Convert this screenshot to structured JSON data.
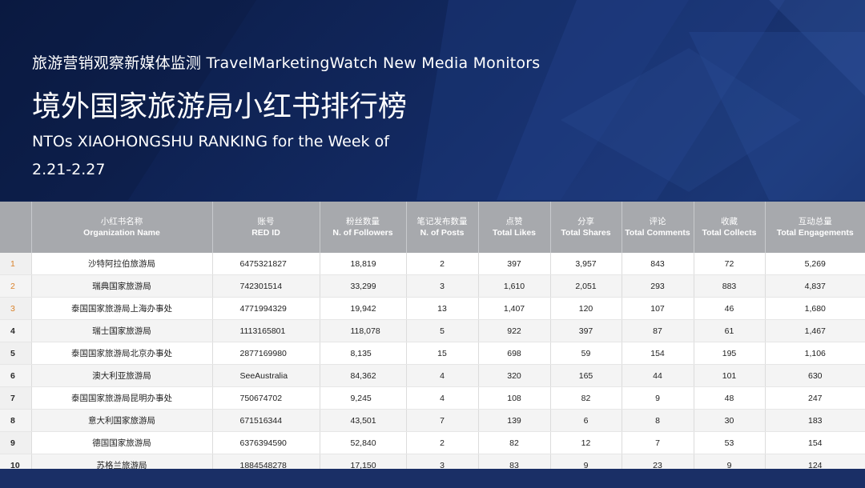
{
  "header": {
    "subtitle": "旅游营销观察新媒体监测 TravelMarketingWatch New Media Monitors",
    "title": "境外国家旅游局小红书排行榜",
    "week_label": "NTOs XIAOHONGSHU RANKING for the Week of",
    "week_dates": "2.21-2.27"
  },
  "colors": {
    "header_bg": "#a7a9ad",
    "top3_rank": "#d9822b",
    "page_bg": "#0d1f4a"
  },
  "table": {
    "columns": [
      {
        "zh": "",
        "en": ""
      },
      {
        "zh": "小红书名称",
        "en": "Organization Name"
      },
      {
        "zh": "账号",
        "en": "RED ID"
      },
      {
        "zh": "粉丝数量",
        "en": "N. of Followers"
      },
      {
        "zh": "笔记发布数量",
        "en": "N. of Posts"
      },
      {
        "zh": "点赞",
        "en": "Total Likes"
      },
      {
        "zh": "分享",
        "en": "Total Shares"
      },
      {
        "zh": "评论",
        "en": "Total Comments"
      },
      {
        "zh": "收藏",
        "en": "Total Collects"
      },
      {
        "zh": "互动总量",
        "en": "Total Engagements"
      }
    ],
    "rows": [
      {
        "rank": "1",
        "name": "沙特阿拉伯旅游局",
        "red_id": "6475321827",
        "followers": "18,819",
        "posts": "2",
        "likes": "397",
        "shares": "3,957",
        "comments": "843",
        "collects": "72",
        "engagements": "5,269"
      },
      {
        "rank": "2",
        "name": "瑞典国家旅游局",
        "red_id": "742301514",
        "followers": "33,299",
        "posts": "3",
        "likes": "1,610",
        "shares": "2,051",
        "comments": "293",
        "collects": "883",
        "engagements": "4,837"
      },
      {
        "rank": "3",
        "name": "泰国国家旅游局上海办事处",
        "red_id": "4771994329",
        "followers": "19,942",
        "posts": "13",
        "likes": "1,407",
        "shares": "120",
        "comments": "107",
        "collects": "46",
        "engagements": "1,680"
      },
      {
        "rank": "4",
        "name": "瑞士国家旅游局",
        "red_id": "1113165801",
        "followers": "118,078",
        "posts": "5",
        "likes": "922",
        "shares": "397",
        "comments": "87",
        "collects": "61",
        "engagements": "1,467"
      },
      {
        "rank": "5",
        "name": "泰国国家旅游局北京办事处",
        "red_id": "2877169980",
        "followers": "8,135",
        "posts": "15",
        "likes": "698",
        "shares": "59",
        "comments": "154",
        "collects": "195",
        "engagements": "1,106"
      },
      {
        "rank": "6",
        "name": "澳大利亚旅游局",
        "red_id": "SeeAustralia",
        "followers": "84,362",
        "posts": "4",
        "likes": "320",
        "shares": "165",
        "comments": "44",
        "collects": "101",
        "engagements": "630"
      },
      {
        "rank": "7",
        "name": "泰国国家旅游局昆明办事处",
        "red_id": "750674702",
        "followers": "9,245",
        "posts": "4",
        "likes": "108",
        "shares": "82",
        "comments": "9",
        "collects": "48",
        "engagements": "247"
      },
      {
        "rank": "8",
        "name": "意大利国家旅游局",
        "red_id": "671516344",
        "followers": "43,501",
        "posts": "7",
        "likes": "139",
        "shares": "6",
        "comments": "8",
        "collects": "30",
        "engagements": "183"
      },
      {
        "rank": "9",
        "name": "德国国家旅游局",
        "red_id": "6376394590",
        "followers": "52,840",
        "posts": "2",
        "likes": "82",
        "shares": "12",
        "comments": "7",
        "collects": "53",
        "engagements": "154"
      },
      {
        "rank": "10",
        "name": "苏格兰旅游局",
        "red_id": "1884548278",
        "followers": "17,150",
        "posts": "3",
        "likes": "83",
        "shares": "9",
        "comments": "23",
        "collects": "9",
        "engagements": "124"
      }
    ]
  }
}
